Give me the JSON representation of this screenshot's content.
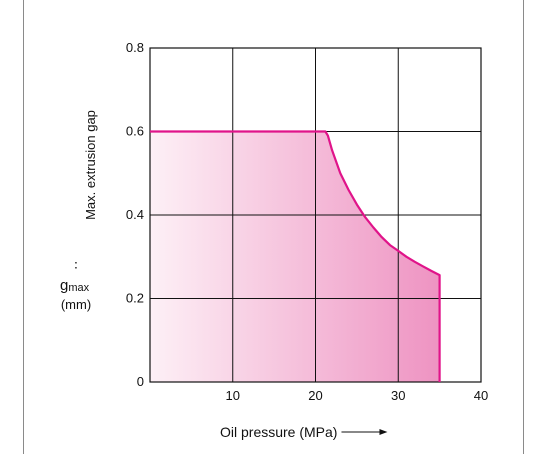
{
  "chart_data": {
    "type": "area",
    "title": "",
    "xlabel": "Oil pressure (MPa)",
    "ylabel": "Max. extrusion gap",
    "ylabel_symbol": "g",
    "ylabel_subscript": "max",
    "ylabel_separator": "∶",
    "ylabel_unit": "(mm)",
    "xlim": [
      0,
      40
    ],
    "ylim": [
      0,
      0.8
    ],
    "xticks": [
      10,
      20,
      30,
      40
    ],
    "yticks": [
      0,
      0.2,
      0.4,
      0.6,
      0.8
    ],
    "xtick_labels": [
      "10",
      "20",
      "30",
      "40"
    ],
    "ytick_labels": [
      "0",
      "0.2",
      "0.4",
      "0.6",
      "0.8"
    ],
    "grid": true,
    "boundary": {
      "x": [
        0,
        21.2,
        21.5,
        22.0,
        23.0,
        24.0,
        25.0,
        26.0,
        27.0,
        28.0,
        29.0,
        30.0,
        31.0,
        32.0,
        33.0,
        34.0,
        35.0,
        35.0
      ],
      "y": [
        0.6,
        0.6,
        0.59,
        0.555,
        0.5,
        0.46,
        0.425,
        0.395,
        0.37,
        0.347,
        0.328,
        0.314,
        0.3,
        0.288,
        0.277,
        0.266,
        0.256,
        0
      ]
    },
    "colors": {
      "curve": "#e0148a",
      "fill_light": "#fdf0f6",
      "fill_dark": "#ee93c2",
      "grid": "#111111"
    }
  }
}
